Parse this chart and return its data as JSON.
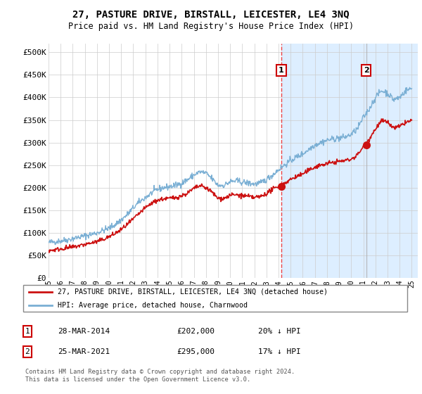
{
  "title": "27, PASTURE DRIVE, BIRSTALL, LEICESTER, LE4 3NQ",
  "subtitle": "Price paid vs. HM Land Registry's House Price Index (HPI)",
  "legend_line1": "27, PASTURE DRIVE, BIRSTALL, LEICESTER, LE4 3NQ (detached house)",
  "legend_line2": "HPI: Average price, detached house, Charnwood",
  "annotation1_date": "28-MAR-2014",
  "annotation1_price": "£202,000",
  "annotation1_pct": "20% ↓ HPI",
  "annotation2_date": "25-MAR-2021",
  "annotation2_price": "£295,000",
  "annotation2_pct": "17% ↓ HPI",
  "footer": "Contains HM Land Registry data © Crown copyright and database right 2024.\nThis data is licensed under the Open Government Licence v3.0.",
  "hpi_color": "#7aafd4",
  "price_color": "#cc1111",
  "vline1_color": "#ee4444",
  "vline2_color": "#aaaaaa",
  "highlight_color": "#ddeeff",
  "ylim_min": 0,
  "ylim_max": 520000,
  "yticks": [
    0,
    50000,
    100000,
    150000,
    200000,
    250000,
    300000,
    350000,
    400000,
    450000,
    500000
  ],
  "sale1_year": 2014.23,
  "sale2_year": 2021.23,
  "sale1_price": 202000,
  "sale2_price": 295000
}
